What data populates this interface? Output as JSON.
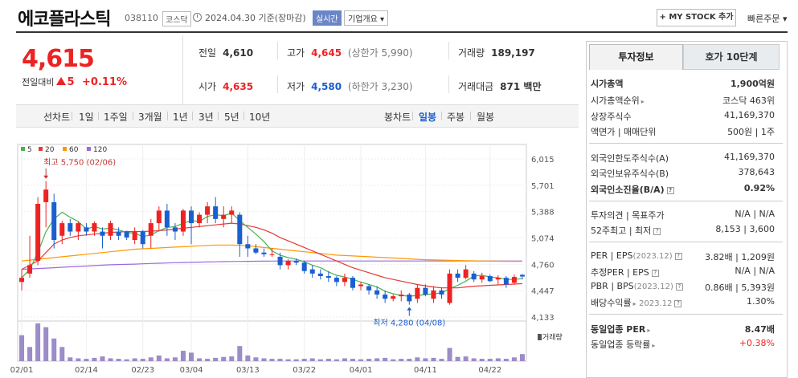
{
  "header": {
    "title": "에코플라스틱",
    "code": "038110",
    "market": "코스닥",
    "date_text": "2024.04.30 기준(장마감)",
    "realtime_label": "실시간",
    "corp_info_label": "기업개요 ▾",
    "mystock_label": "+ MY STOCK 추가",
    "quick_order_label": "빠른주문 ▾"
  },
  "price": {
    "current": "4,615",
    "change_label": "전일대비",
    "change": "5",
    "change_rate": "+0.11%"
  },
  "summary": {
    "prev_label": "전일",
    "prev": "4,610",
    "high_label": "고가",
    "high": "4,645",
    "upper_limit": "(상한가 5,990)",
    "volume_label": "거래량",
    "volume": "189,197",
    "open_label": "시가",
    "open": "4,635",
    "low_label": "저가",
    "low": "4,580",
    "lower_limit": "(하한가 3,230)",
    "amount_label": "거래대금",
    "amount": "871 백만"
  },
  "period_tabs": {
    "line": "선차트",
    "items": [
      "1일",
      "1주일",
      "3개월",
      "1년",
      "3년",
      "5년",
      "10년"
    ],
    "candle": "봉차트",
    "candle_items": [
      "일봉",
      "주봉",
      "월봉"
    ],
    "active_candle": "일봉"
  },
  "chart_data": {
    "type": "candlestick",
    "legend": [
      "5",
      "20",
      "60",
      "120"
    ],
    "colors": {
      "ma5": "#4caf50",
      "ma20": "#e53935",
      "ma60": "#ff9800",
      "ma120": "#9c6ade",
      "up": "#e22",
      "down": "#1a5fd0"
    },
    "y_ticks": [
      "6,015",
      "5,701",
      "5,388",
      "5,074",
      "4,760",
      "4,447",
      "4,133"
    ],
    "ylim": [
      4133,
      6015
    ],
    "x_labels": [
      "02/01",
      "02/14",
      "02/23",
      "03/04",
      "03/13",
      "03/22",
      "04/01",
      "04/11",
      "04/22"
    ],
    "x_label_index": [
      0,
      8,
      15,
      21,
      28,
      35,
      42,
      50,
      58
    ],
    "high_annotation": "최고 5,750 (02/06)",
    "low_annotation": "최저 4,280 (04/08)",
    "high_index": 3,
    "low_index": 48,
    "volume_label": "거래량",
    "candles": [
      [
        4550,
        4700,
        4450,
        4600
      ],
      [
        4650,
        5100,
        4600,
        4750
      ],
      [
        4800,
        5560,
        4750,
        5480
      ],
      [
        5500,
        5750,
        5200,
        5650
      ],
      [
        5500,
        5600,
        4950,
        5050
      ],
      [
        5100,
        5280,
        5000,
        5250
      ],
      [
        5250,
        5300,
        5100,
        5150
      ],
      [
        5150,
        5270,
        5050,
        5250
      ],
      [
        5200,
        5250,
        5100,
        5150
      ],
      [
        5150,
        5270,
        5100,
        5250
      ],
      [
        5150,
        5200,
        4950,
        5100
      ],
      [
        5100,
        5280,
        5050,
        5250
      ],
      [
        5150,
        5200,
        5050,
        5100
      ],
      [
        5150,
        5160,
        5050,
        5080
      ],
      [
        5050,
        5200,
        5000,
        5150
      ],
      [
        5150,
        5170,
        4950,
        5000
      ],
      [
        5100,
        5300,
        4950,
        5250
      ],
      [
        5250,
        5450,
        5150,
        5400
      ],
      [
        5400,
        5480,
        5100,
        5200
      ],
      [
        5200,
        5250,
        5050,
        5150
      ],
      [
        5150,
        5420,
        5100,
        5400
      ],
      [
        5400,
        5450,
        5000,
        5250
      ],
      [
        5250,
        5380,
        5200,
        5350
      ],
      [
        5350,
        5500,
        5250,
        5450
      ],
      [
        5450,
        5560,
        5250,
        5300
      ],
      [
        5300,
        5450,
        5200,
        5350
      ],
      [
        5350,
        5450,
        5250,
        5400
      ],
      [
        5350,
        5380,
        4850,
        5000
      ],
      [
        5000,
        5100,
        4850,
        4950
      ],
      [
        4950,
        5000,
        4880,
        4900
      ],
      [
        4900,
        4950,
        4850,
        4880
      ],
      [
        4880,
        4950,
        4850,
        4880
      ],
      [
        4850,
        4900,
        4700,
        4750
      ],
      [
        4750,
        4820,
        4700,
        4800
      ],
      [
        4800,
        4830,
        4750,
        4780
      ],
      [
        4780,
        4800,
        4650,
        4680
      ],
      [
        4700,
        4750,
        4600,
        4650
      ],
      [
        4650,
        4700,
        4580,
        4620
      ],
      [
        4620,
        4680,
        4550,
        4600
      ],
      [
        4600,
        4620,
        4500,
        4550
      ],
      [
        4550,
        4650,
        4500,
        4600
      ],
      [
        4600,
        4620,
        4450,
        4480
      ],
      [
        4500,
        4550,
        4450,
        4520
      ],
      [
        4500,
        4520,
        4400,
        4450
      ],
      [
        4450,
        4500,
        4350,
        4400
      ],
      [
        4400,
        4450,
        4300,
        4350
      ],
      [
        4350,
        4400,
        4320,
        4380
      ],
      [
        4380,
        4450,
        4320,
        4400
      ],
      [
        4400,
        4420,
        4280,
        4320
      ],
      [
        4350,
        4520,
        4300,
        4480
      ],
      [
        4480,
        4520,
        4380,
        4400
      ],
      [
        4350,
        4500,
        4300,
        4450
      ],
      [
        4450,
        4480,
        4350,
        4400
      ],
      [
        4300,
        4700,
        4280,
        4650
      ],
      [
        4650,
        4700,
        4550,
        4600
      ],
      [
        4600,
        4750,
        4580,
        4700
      ],
      [
        4650,
        4680,
        4550,
        4580
      ],
      [
        4580,
        4660,
        4540,
        4620
      ],
      [
        4620,
        4640,
        4550,
        4560
      ],
      [
        4580,
        4630,
        4520,
        4600
      ],
      [
        4600,
        4620,
        4480,
        4520
      ],
      [
        4540,
        4640,
        4520,
        4610
      ],
      [
        4635,
        4645,
        4580,
        4615
      ]
    ],
    "volumes": [
      55,
      30,
      80,
      72,
      48,
      30,
      8,
      6,
      5,
      7,
      10,
      6,
      5,
      4,
      6,
      5,
      8,
      12,
      6,
      8,
      22,
      18,
      6,
      5,
      7,
      9,
      10,
      32,
      12,
      8,
      6,
      5,
      5,
      4,
      4,
      5,
      6,
      4,
      5,
      4,
      6,
      5,
      4,
      5,
      6,
      7,
      4,
      5,
      5,
      8,
      6,
      7,
      5,
      28,
      9,
      10,
      6,
      5,
      5,
      6,
      5,
      8,
      15
    ],
    "ma5": [
      4600,
      4700,
      4900,
      5150,
      5300,
      5380,
      5320,
      5270,
      5180,
      5210,
      5180,
      5190,
      5170,
      5140,
      5130,
      5090,
      5110,
      5160,
      5200,
      5210,
      5250,
      5280,
      5270,
      5330,
      5350,
      5340,
      5370,
      5280,
      5200,
      5120,
      5030,
      4920,
      4870,
      4840,
      4820,
      4790,
      4750,
      4720,
      4670,
      4630,
      4610,
      4580,
      4550,
      4520,
      4490,
      4440,
      4410,
      4390,
      4380,
      4390,
      4400,
      4410,
      4420,
      4470,
      4510,
      4560,
      4620,
      4630,
      4610,
      4600,
      4580,
      4580,
      4590
    ],
    "ma20": [
      4700,
      4750,
      4800,
      4900,
      5000,
      5050,
      5080,
      5100,
      5110,
      5120,
      5130,
      5140,
      5145,
      5150,
      5150,
      5150,
      5155,
      5160,
      5170,
      5180,
      5190,
      5200,
      5210,
      5220,
      5230,
      5240,
      5250,
      5240,
      5220,
      5200,
      5170,
      5130,
      5080,
      5040,
      5000,
      4960,
      4920,
      4880,
      4840,
      4800,
      4760,
      4720,
      4690,
      4660,
      4630,
      4600,
      4580,
      4560,
      4540,
      4520,
      4505,
      4490,
      4480,
      4480,
      4480,
      4490,
      4500,
      4505,
      4510,
      4515,
      4520,
      4525,
      4530
    ],
    "ma60": [
      4800,
      4810,
      4820,
      4830,
      4840,
      4850,
      4860,
      4870,
      4880,
      4890,
      4900,
      4910,
      4920,
      4930,
      4940,
      4945,
      4950,
      4955,
      4960,
      4965,
      4970,
      4975,
      4980,
      4985,
      4990,
      4990,
      4990,
      4985,
      4980,
      4970,
      4960,
      4950,
      4940,
      4930,
      4920,
      4910,
      4900,
      4890,
      4880,
      4870,
      4865,
      4860,
      4855,
      4850,
      4845,
      4840,
      4835,
      4830,
      4825,
      4820,
      4815,
      4812,
      4810,
      4808,
      4806,
      4804,
      4802,
      4800,
      4798,
      4797,
      4796,
      4795,
      4795
    ],
    "ma120": [
      4700,
      4705,
      4710,
      4715,
      4720,
      4725,
      4730,
      4735,
      4740,
      4745,
      4750,
      4755,
      4758,
      4760,
      4763,
      4766,
      4770,
      4773,
      4776,
      4780,
      4782,
      4784,
      4786,
      4788,
      4790,
      4792,
      4794,
      4795,
      4796,
      4797,
      4798,
      4799,
      4800,
      4800,
      4800,
      4800,
      4800,
      4800,
      4800,
      4800,
      4800,
      4800,
      4800,
      4800,
      4800,
      4800,
      4800,
      4800,
      4800,
      4800,
      4800,
      4800,
      4800,
      4800,
      4800,
      4800,
      4800,
      4800,
      4800,
      4800,
      4800,
      4800,
      4800
    ]
  },
  "right_panel": {
    "tab_info": "투자정보",
    "tab_quote": "호가 10단계",
    "market_cap_label": "시가총액",
    "market_cap": "1,900억원",
    "market_cap_rank_label": "시가총액순위",
    "market_cap_rank": "코스닥 463위",
    "shares_label": "상장주식수",
    "shares": "41,169,370",
    "par_label": "액면가 | 매매단위",
    "par": "500원 | 1주",
    "foreign_limit_label": "외국인한도주식수(A)",
    "foreign_limit": "41,169,370",
    "foreign_hold_label": "외국인보유주식수(B)",
    "foreign_hold": "378,643",
    "foreign_ratio_label": "외국인소진율(B/A)",
    "foreign_ratio": "0.92%",
    "opinion_label": "투자의견 | 목표주가",
    "opinion": "N/A | N/A",
    "week52_label": "52주최고 | 최저",
    "week52": "8,153 | 3,600",
    "per_label": "PER | EPS",
    "per_year": "(2023.12)",
    "per": "3.82배 | 1,209원",
    "est_per_label": "추정PER | EPS",
    "est_per": "N/A | N/A",
    "pbr_label": "PBR | BPS",
    "pbr_year": "(2023.12)",
    "pbr": "0.86배 | 5,393원",
    "dividend_label": "배당수익률",
    "dividend_year": "2023.12",
    "dividend": "1.30%",
    "industry_per_label": "동일업종 PER",
    "industry_per": "8.47배",
    "industry_rate_label": "동일업종 등락률",
    "industry_rate": "+0.38%"
  }
}
